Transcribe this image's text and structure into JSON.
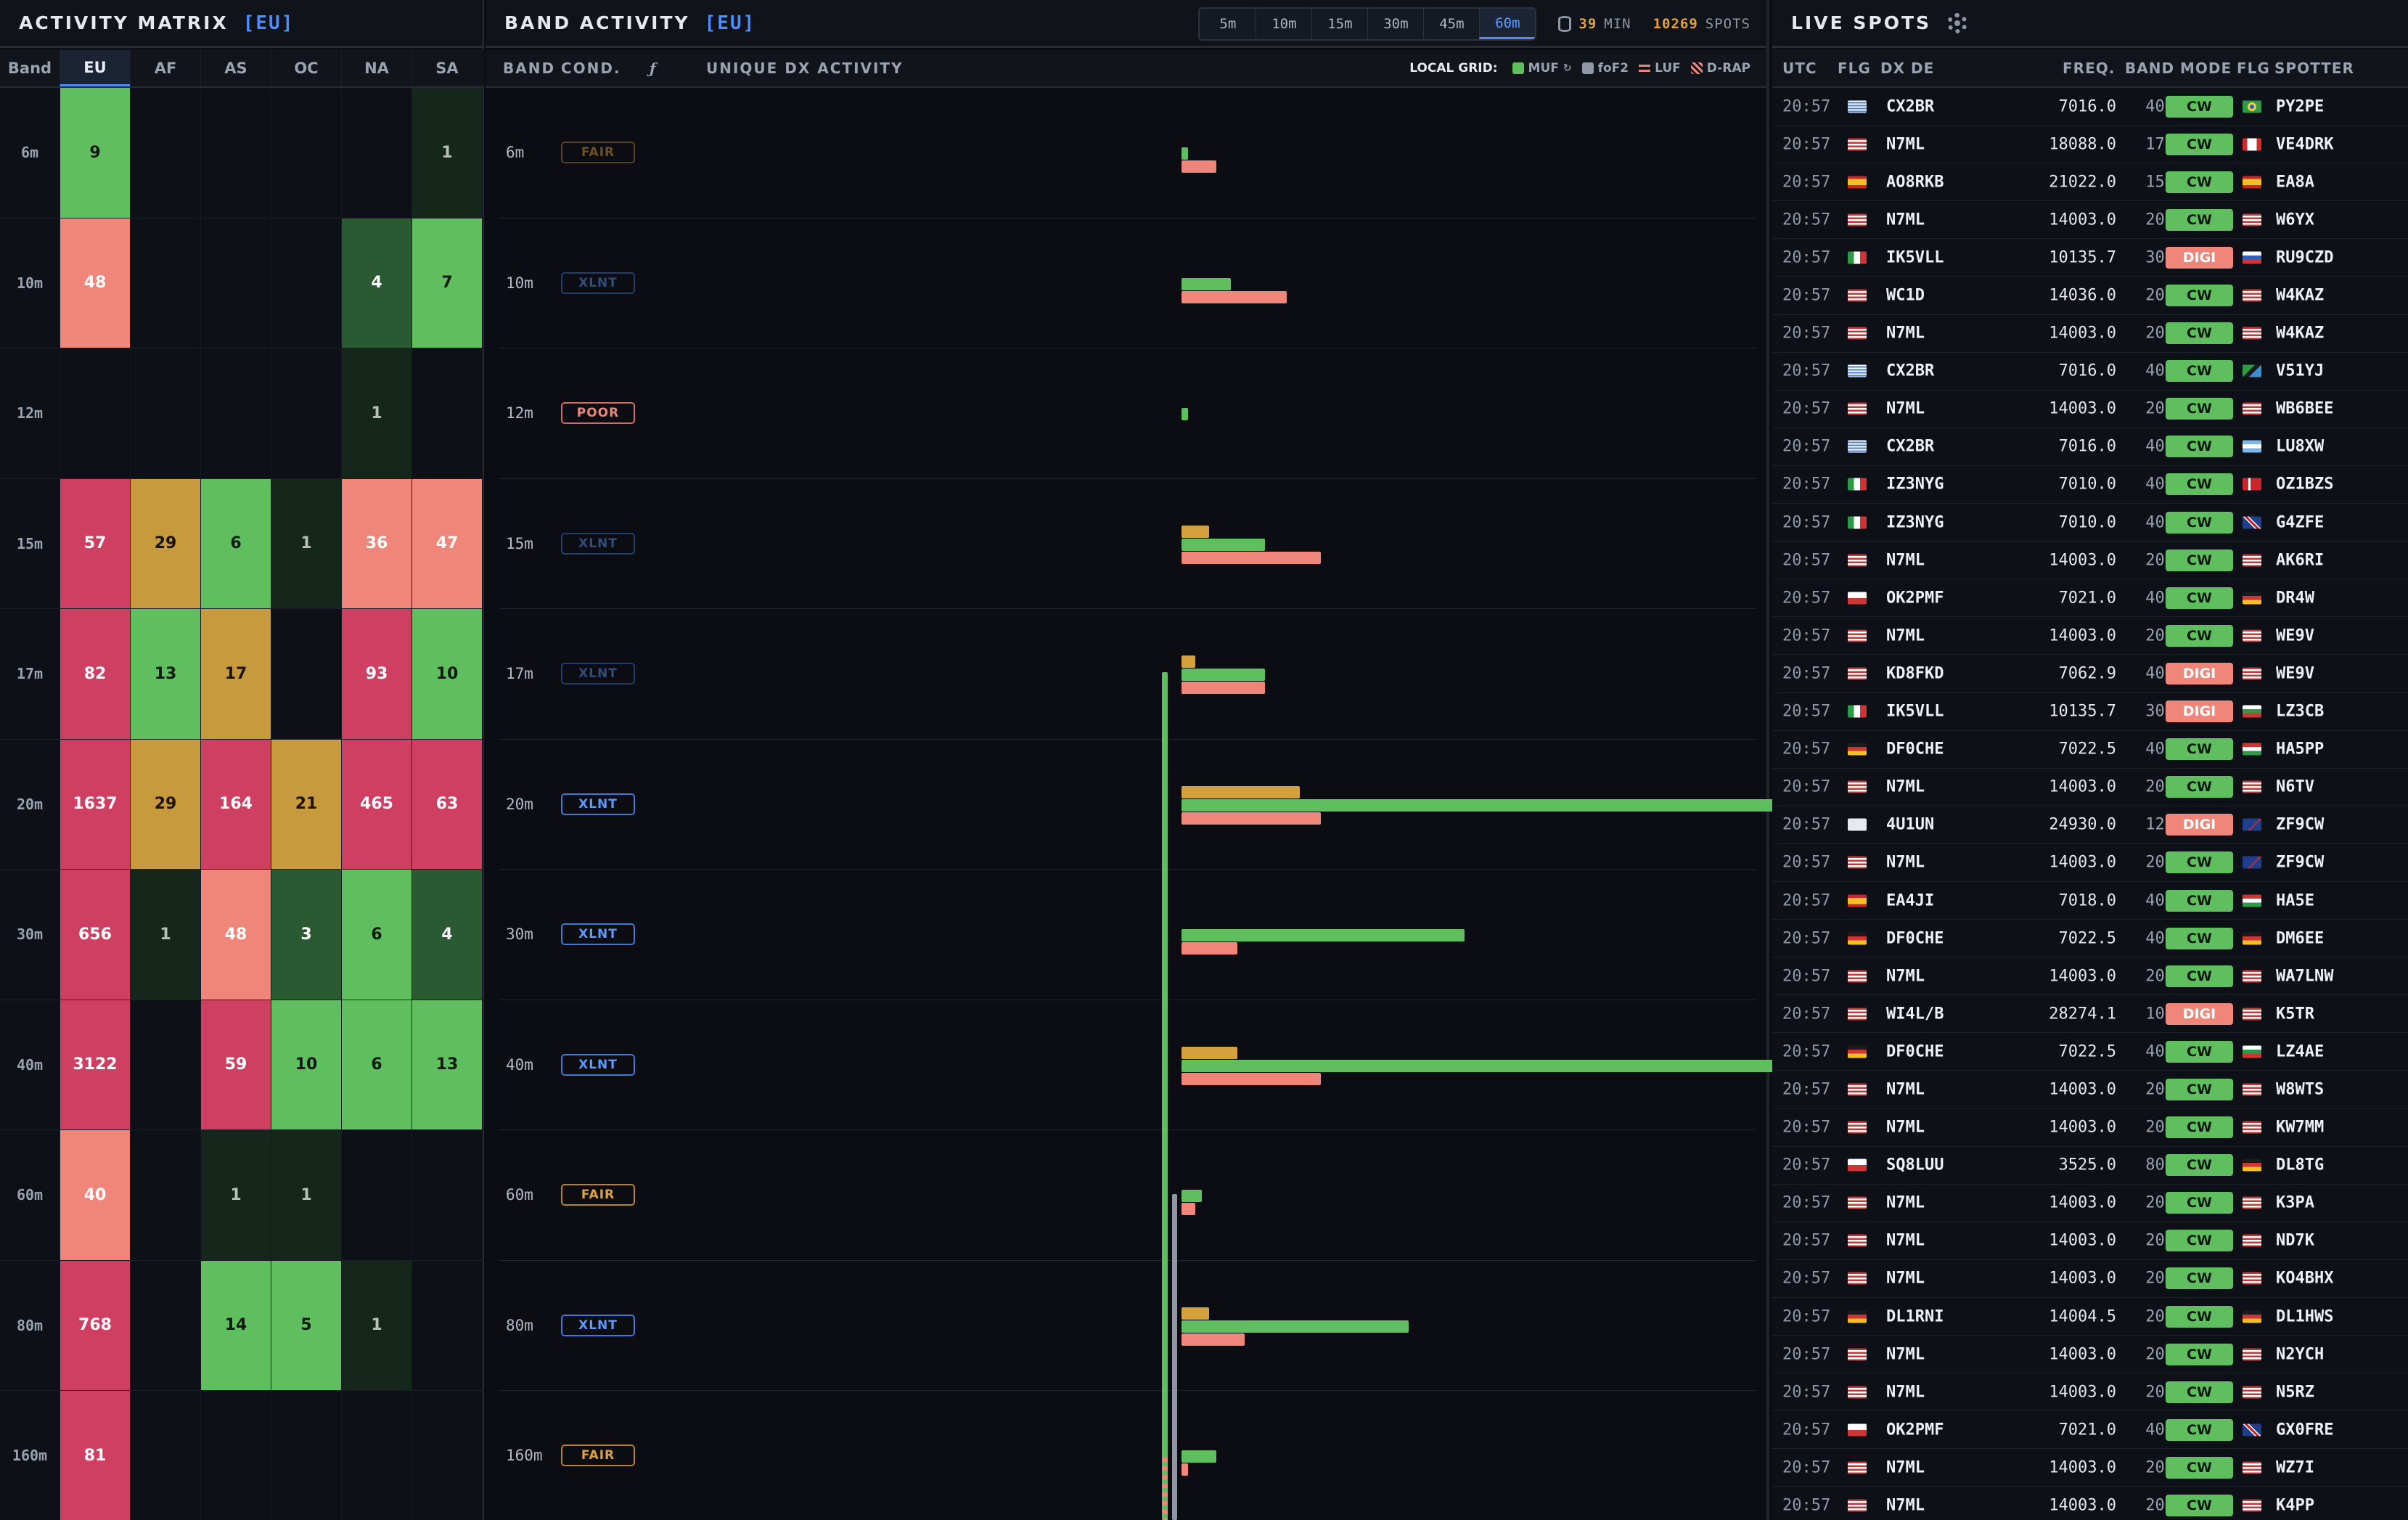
{
  "matrix": {
    "title": "ACTIVITY MATRIX",
    "region": "[EU]",
    "columns": [
      "Band",
      "EU",
      "AF",
      "AS",
      "OC",
      "NA",
      "SA"
    ],
    "rows": [
      {
        "band": "6m",
        "cells": [
          {
            "v": "9",
            "c": "green"
          },
          {
            "v": "",
            "c": "empty"
          },
          {
            "v": "",
            "c": "empty"
          },
          {
            "v": "",
            "c": "empty"
          },
          {
            "v": "",
            "c": "empty"
          },
          {
            "v": "1",
            "c": "dark"
          }
        ]
      },
      {
        "band": "10m",
        "cells": [
          {
            "v": "48",
            "c": "salmon"
          },
          {
            "v": "",
            "c": "empty"
          },
          {
            "v": "",
            "c": "empty"
          },
          {
            "v": "",
            "c": "empty"
          },
          {
            "v": "4",
            "c": "mid"
          },
          {
            "v": "7",
            "c": "green"
          }
        ]
      },
      {
        "band": "12m",
        "cells": [
          {
            "v": "",
            "c": "empty"
          },
          {
            "v": "",
            "c": "empty"
          },
          {
            "v": "",
            "c": "empty"
          },
          {
            "v": "",
            "c": "empty"
          },
          {
            "v": "1",
            "c": "dark"
          },
          {
            "v": "",
            "c": "empty"
          }
        ]
      },
      {
        "band": "15m",
        "cells": [
          {
            "v": "57",
            "c": "crimson"
          },
          {
            "v": "29",
            "c": "gold"
          },
          {
            "v": "6",
            "c": "green"
          },
          {
            "v": "1",
            "c": "dark"
          },
          {
            "v": "36",
            "c": "salmon"
          },
          {
            "v": "47",
            "c": "salmon"
          }
        ]
      },
      {
        "band": "17m",
        "cells": [
          {
            "v": "82",
            "c": "crimson"
          },
          {
            "v": "13",
            "c": "green"
          },
          {
            "v": "17",
            "c": "gold"
          },
          {
            "v": "",
            "c": "empty"
          },
          {
            "v": "93",
            "c": "crimson"
          },
          {
            "v": "10",
            "c": "green"
          }
        ]
      },
      {
        "band": "20m",
        "cells": [
          {
            "v": "1637",
            "c": "crimson"
          },
          {
            "v": "29",
            "c": "gold"
          },
          {
            "v": "164",
            "c": "crimson"
          },
          {
            "v": "21",
            "c": "gold"
          },
          {
            "v": "465",
            "c": "crimson"
          },
          {
            "v": "63",
            "c": "crimson"
          }
        ]
      },
      {
        "band": "30m",
        "cells": [
          {
            "v": "656",
            "c": "crimson"
          },
          {
            "v": "1",
            "c": "dark"
          },
          {
            "v": "48",
            "c": "salmon"
          },
          {
            "v": "3",
            "c": "mid"
          },
          {
            "v": "6",
            "c": "green"
          },
          {
            "v": "4",
            "c": "mid"
          }
        ]
      },
      {
        "band": "40m",
        "cells": [
          {
            "v": "3122",
            "c": "crimson"
          },
          {
            "v": "",
            "c": "empty"
          },
          {
            "v": "59",
            "c": "crimson"
          },
          {
            "v": "10",
            "c": "green"
          },
          {
            "v": "6",
            "c": "green"
          },
          {
            "v": "13",
            "c": "green"
          }
        ]
      },
      {
        "band": "60m",
        "cells": [
          {
            "v": "40",
            "c": "salmon"
          },
          {
            "v": "",
            "c": "empty"
          },
          {
            "v": "1",
            "c": "dark"
          },
          {
            "v": "1",
            "c": "dark"
          },
          {
            "v": "",
            "c": "empty"
          },
          {
            "v": "",
            "c": "empty"
          }
        ]
      },
      {
        "band": "80m",
        "cells": [
          {
            "v": "768",
            "c": "crimson"
          },
          {
            "v": "",
            "c": "empty"
          },
          {
            "v": "14",
            "c": "green"
          },
          {
            "v": "5",
            "c": "green"
          },
          {
            "v": "1",
            "c": "dark"
          },
          {
            "v": "",
            "c": "empty"
          }
        ]
      },
      {
        "band": "160m",
        "cells": [
          {
            "v": "81",
            "c": "crimson"
          },
          {
            "v": "",
            "c": "empty"
          },
          {
            "v": "",
            "c": "empty"
          },
          {
            "v": "",
            "c": "empty"
          },
          {
            "v": "",
            "c": "empty"
          },
          {
            "v": "",
            "c": "empty"
          }
        ]
      }
    ]
  },
  "band_activity": {
    "title": "BAND ACTIVITY",
    "region": "[EU]",
    "windows": [
      "5m",
      "10m",
      "15m",
      "30m",
      "45m",
      "60m"
    ],
    "active_window": "60m",
    "stat_minutes_value": "39",
    "stat_minutes_label": "MIN",
    "stat_spots_value": "10269",
    "stat_spots_label": "SPOTS",
    "col_band": "BAND",
    "col_cond": "COND.",
    "col_f": "ƒ",
    "col_unique": "UNIQUE DX ACTIVITY",
    "legend_title": "LOCAL GRID:",
    "legend": [
      "MUF",
      "foF2",
      "LUF",
      "D-RAP"
    ],
    "rows": [
      {
        "band": "6m",
        "cond": "FAIR",
        "dim": true,
        "bars": {
          "gold": 0,
          "green": 9,
          "salmon": 48
        }
      },
      {
        "band": "10m",
        "cond": "XLNT",
        "dim": true,
        "bars": {
          "gold": 0,
          "green": 68,
          "salmon": 145
        }
      },
      {
        "band": "12m",
        "cond": "POOR",
        "dim": false,
        "bars": {
          "gold": 0,
          "green": 9,
          "salmon": 0
        }
      },
      {
        "band": "15m",
        "cond": "XLNT",
        "dim": true,
        "bars": {
          "gold": 38,
          "green": 115,
          "salmon": 192
        }
      },
      {
        "band": "17m",
        "cond": "XLNT",
        "dim": true,
        "bars": {
          "gold": 19,
          "green": 115,
          "salmon": 115
        }
      },
      {
        "band": "20m",
        "cond": "XLNT",
        "dim": false,
        "bars": {
          "gold": 163,
          "green": 1080,
          "salmon": 192
        }
      },
      {
        "band": "30m",
        "cond": "XLNT",
        "dim": false,
        "bars": {
          "gold": 0,
          "green": 390,
          "salmon": 77
        }
      },
      {
        "band": "40m",
        "cond": "XLNT",
        "dim": false,
        "bars": {
          "gold": 77,
          "green": 968,
          "salmon": 192
        }
      },
      {
        "band": "60m",
        "cond": "FAIR",
        "dim": false,
        "bars": {
          "gold": 0,
          "green": 28,
          "salmon": 19
        }
      },
      {
        "band": "80m",
        "cond": "XLNT",
        "dim": false,
        "bars": {
          "gold": 38,
          "green": 313,
          "salmon": 87
        }
      },
      {
        "band": "160m",
        "cond": "FAIR",
        "dim": false,
        "bars": {
          "gold": 0,
          "green": 48,
          "salmon": 9
        }
      }
    ]
  },
  "spots": {
    "title": "LIVE SPOTS",
    "columns": {
      "utc": "UTC",
      "flg": "FLG",
      "dx": "DX DE",
      "freq": "FREQ.",
      "band": "BAND",
      "mode": "MODE",
      "flg2": "FLG",
      "spotter": "SPOTTER"
    },
    "rows": [
      {
        "utc": "20:57",
        "dx": "CX2BR",
        "freq": "7016.0",
        "band": "40m",
        "mode": "CW",
        "f1": "uy",
        "f2": "br",
        "spotter": "PY2PE"
      },
      {
        "utc": "20:57",
        "dx": "N7ML",
        "freq": "18088.0",
        "band": "17m",
        "mode": "CW",
        "f1": "us",
        "f2": "ca",
        "spotter": "VE4DRK"
      },
      {
        "utc": "20:57",
        "dx": "AO8RKB",
        "freq": "21022.0",
        "band": "15m",
        "mode": "CW",
        "f1": "es",
        "f2": "es",
        "spotter": "EA8A"
      },
      {
        "utc": "20:57",
        "dx": "N7ML",
        "freq": "14003.0",
        "band": "20m",
        "mode": "CW",
        "f1": "us",
        "f2": "us",
        "spotter": "W6YX"
      },
      {
        "utc": "20:57",
        "dx": "IK5VLL",
        "freq": "10135.7",
        "band": "30m",
        "mode": "DIGI",
        "f1": "it",
        "f2": "ru",
        "spotter": "RU9CZD"
      },
      {
        "utc": "20:57",
        "dx": "WC1D",
        "freq": "14036.0",
        "band": "20m",
        "mode": "CW",
        "f1": "us",
        "f2": "us",
        "spotter": "W4KAZ"
      },
      {
        "utc": "20:57",
        "dx": "N7ML",
        "freq": "14003.0",
        "band": "20m",
        "mode": "CW",
        "f1": "us",
        "f2": "us",
        "spotter": "W4KAZ"
      },
      {
        "utc": "20:57",
        "dx": "CX2BR",
        "freq": "7016.0",
        "band": "40m",
        "mode": "CW",
        "f1": "uy",
        "f2": "tz",
        "spotter": "V51YJ"
      },
      {
        "utc": "20:57",
        "dx": "N7ML",
        "freq": "14003.0",
        "band": "20m",
        "mode": "CW",
        "f1": "us",
        "f2": "us",
        "spotter": "WB6BEE"
      },
      {
        "utc": "20:57",
        "dx": "CX2BR",
        "freq": "7016.0",
        "band": "40m",
        "mode": "CW",
        "f1": "uy",
        "f2": "ar",
        "spotter": "LU8XW"
      },
      {
        "utc": "20:57",
        "dx": "IZ3NYG",
        "freq": "7010.0",
        "band": "40m",
        "mode": "CW",
        "f1": "it",
        "f2": "dk",
        "spotter": "OZ1BZS"
      },
      {
        "utc": "20:57",
        "dx": "IZ3NYG",
        "freq": "7010.0",
        "band": "40m",
        "mode": "CW",
        "f1": "it",
        "f2": "gb",
        "spotter": "G4ZFE"
      },
      {
        "utc": "20:57",
        "dx": "N7ML",
        "freq": "14003.0",
        "band": "20m",
        "mode": "CW",
        "f1": "us",
        "f2": "us",
        "spotter": "AK6RI"
      },
      {
        "utc": "20:57",
        "dx": "OK2PMF",
        "freq": "7021.0",
        "band": "40m",
        "mode": "CW",
        "f1": "cz",
        "f2": "de",
        "spotter": "DR4W"
      },
      {
        "utc": "20:57",
        "dx": "N7ML",
        "freq": "14003.0",
        "band": "20m",
        "mode": "CW",
        "f1": "us",
        "f2": "us",
        "spotter": "WE9V"
      },
      {
        "utc": "20:57",
        "dx": "KD8FKD",
        "freq": "7062.9",
        "band": "40m",
        "mode": "DIGI",
        "f1": "us",
        "f2": "us",
        "spotter": "WE9V"
      },
      {
        "utc": "20:57",
        "dx": "IK5VLL",
        "freq": "10135.7",
        "band": "30m",
        "mode": "DIGI",
        "f1": "it",
        "f2": "bg",
        "spotter": "LZ3CB"
      },
      {
        "utc": "20:57",
        "dx": "DF0CHE",
        "freq": "7022.5",
        "band": "40m",
        "mode": "CW",
        "f1": "de",
        "f2": "hu",
        "spotter": "HA5PP"
      },
      {
        "utc": "20:57",
        "dx": "N7ML",
        "freq": "14003.0",
        "band": "20m",
        "mode": "CW",
        "f1": "us",
        "f2": "us",
        "spotter": "N6TV"
      },
      {
        "utc": "20:57",
        "dx": "4U1UN",
        "freq": "24930.0",
        "band": "12m",
        "mode": "DIGI",
        "f1": "un",
        "f2": "fk",
        "spotter": "ZF9CW"
      },
      {
        "utc": "20:57",
        "dx": "N7ML",
        "freq": "14003.0",
        "band": "20m",
        "mode": "CW",
        "f1": "us",
        "f2": "fk",
        "spotter": "ZF9CW"
      },
      {
        "utc": "20:57",
        "dx": "EA4JI",
        "freq": "7018.0",
        "band": "40m",
        "mode": "CW",
        "f1": "es",
        "f2": "hu",
        "spotter": "HA5E"
      },
      {
        "utc": "20:57",
        "dx": "DF0CHE",
        "freq": "7022.5",
        "band": "40m",
        "mode": "CW",
        "f1": "de",
        "f2": "de",
        "spotter": "DM6EE"
      },
      {
        "utc": "20:57",
        "dx": "N7ML",
        "freq": "14003.0",
        "band": "20m",
        "mode": "CW",
        "f1": "us",
        "f2": "us",
        "spotter": "WA7LNW"
      },
      {
        "utc": "20:57",
        "dx": "WI4L/B",
        "freq": "28274.1",
        "band": "10m",
        "mode": "DIGI",
        "f1": "us",
        "f2": "us",
        "spotter": "K5TR"
      },
      {
        "utc": "20:57",
        "dx": "DF0CHE",
        "freq": "7022.5",
        "band": "40m",
        "mode": "CW",
        "f1": "de",
        "f2": "bg",
        "spotter": "LZ4AE"
      },
      {
        "utc": "20:57",
        "dx": "N7ML",
        "freq": "14003.0",
        "band": "20m",
        "mode": "CW",
        "f1": "us",
        "f2": "us",
        "spotter": "W8WTS"
      },
      {
        "utc": "20:57",
        "dx": "N7ML",
        "freq": "14003.0",
        "band": "20m",
        "mode": "CW",
        "f1": "us",
        "f2": "us",
        "spotter": "KW7MM"
      },
      {
        "utc": "20:57",
        "dx": "SQ8LUU",
        "freq": "3525.0",
        "band": "80m",
        "mode": "CW",
        "f1": "pl",
        "f2": "de",
        "spotter": "DL8TG"
      },
      {
        "utc": "20:57",
        "dx": "N7ML",
        "freq": "14003.0",
        "band": "20m",
        "mode": "CW",
        "f1": "us",
        "f2": "us",
        "spotter": "K3PA"
      },
      {
        "utc": "20:57",
        "dx": "N7ML",
        "freq": "14003.0",
        "band": "20m",
        "mode": "CW",
        "f1": "us",
        "f2": "us",
        "spotter": "ND7K"
      },
      {
        "utc": "20:57",
        "dx": "N7ML",
        "freq": "14003.0",
        "band": "20m",
        "mode": "CW",
        "f1": "us",
        "f2": "us",
        "spotter": "KO4BHX"
      },
      {
        "utc": "20:57",
        "dx": "DL1RNI",
        "freq": "14004.5",
        "band": "20m",
        "mode": "CW",
        "f1": "de",
        "f2": "de",
        "spotter": "DL1HWS"
      },
      {
        "utc": "20:57",
        "dx": "N7ML",
        "freq": "14003.0",
        "band": "20m",
        "mode": "CW",
        "f1": "us",
        "f2": "us",
        "spotter": "N2YCH"
      },
      {
        "utc": "20:57",
        "dx": "N7ML",
        "freq": "14003.0",
        "band": "20m",
        "mode": "CW",
        "f1": "us",
        "f2": "us",
        "spotter": "N5RZ"
      },
      {
        "utc": "20:57",
        "dx": "OK2PMF",
        "freq": "7021.0",
        "band": "40m",
        "mode": "CW",
        "f1": "cz",
        "f2": "gb",
        "spotter": "GX0FRE"
      },
      {
        "utc": "20:57",
        "dx": "N7ML",
        "freq": "14003.0",
        "band": "20m",
        "mode": "CW",
        "f1": "us",
        "f2": "us",
        "spotter": "WZ7I"
      },
      {
        "utc": "20:57",
        "dx": "N7ML",
        "freq": "14003.0",
        "band": "20m",
        "mode": "CW",
        "f1": "us",
        "f2": "us",
        "spotter": "K4PP"
      }
    ]
  },
  "colors": {
    "accent": "#4c8dff",
    "green": "#5fbf5f",
    "salmon": "#f0867a",
    "crimson": "#cf3f62",
    "gold": "#c89a3e"
  }
}
